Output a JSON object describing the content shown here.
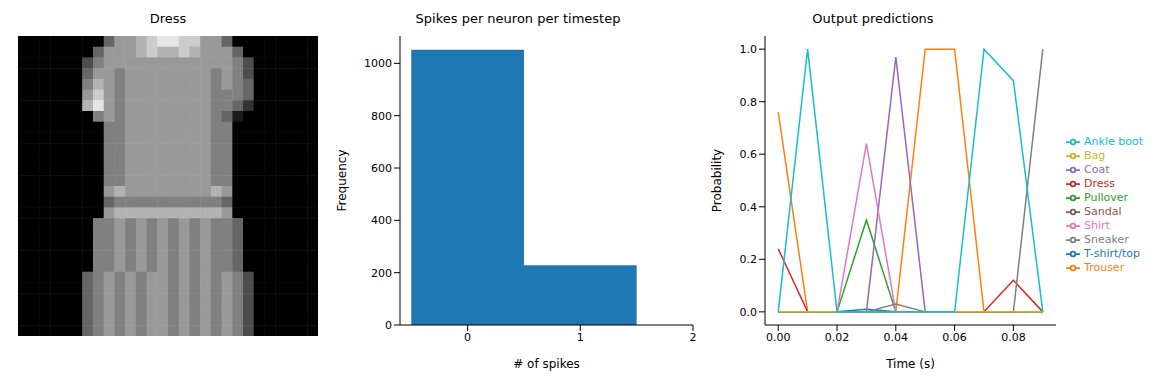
{
  "chart_data": [
    {
      "type": "image",
      "title": "Dress",
      "cells": [
        [
          0,
          0,
          0,
          0,
          0,
          0,
          0,
          0,
          0.4,
          0.6,
          0.6,
          0.7,
          0.8,
          0.9,
          0.9,
          0.8,
          0.8,
          0.6,
          0.6,
          0.4,
          0,
          0,
          0,
          0,
          0,
          0,
          0,
          0
        ],
        [
          0,
          0,
          0,
          0,
          0,
          0,
          0,
          0.4,
          0.6,
          0.6,
          0.6,
          0.7,
          0.8,
          0.7,
          0.7,
          0.8,
          0.7,
          0.6,
          0.6,
          0.6,
          0.4,
          0,
          0,
          0,
          0,
          0,
          0,
          0
        ],
        [
          0,
          0,
          0,
          0,
          0,
          0,
          0.3,
          0.5,
          0.6,
          0.6,
          0.6,
          0.6,
          0.6,
          0.6,
          0.6,
          0.6,
          0.6,
          0.6,
          0.6,
          0.6,
          0.5,
          0.3,
          0,
          0,
          0,
          0,
          0,
          0
        ],
        [
          0,
          0,
          0,
          0,
          0,
          0,
          0.4,
          0.6,
          0.6,
          0.5,
          0.6,
          0.6,
          0.6,
          0.6,
          0.6,
          0.6,
          0.6,
          0.6,
          0.5,
          0.6,
          0.5,
          0.3,
          0,
          0,
          0,
          0,
          0,
          0
        ],
        [
          0,
          0,
          0,
          0,
          0,
          0,
          0.5,
          0.7,
          0.6,
          0.5,
          0.6,
          0.6,
          0.6,
          0.6,
          0.6,
          0.6,
          0.6,
          0.6,
          0.5,
          0.6,
          0.5,
          0.4,
          0,
          0,
          0,
          0,
          0,
          0
        ],
        [
          0,
          0,
          0,
          0,
          0,
          0,
          0.6,
          0.8,
          0.6,
          0.5,
          0.6,
          0.6,
          0.6,
          0.6,
          0.6,
          0.6,
          0.6,
          0.6,
          0.5,
          0.5,
          0.5,
          0.4,
          0,
          0,
          0,
          0,
          0,
          0
        ],
        [
          0,
          0,
          0,
          0,
          0,
          0,
          0.7,
          0.9,
          0.6,
          0.5,
          0.6,
          0.6,
          0.6,
          0.6,
          0.6,
          0.6,
          0.6,
          0.6,
          0.5,
          0.5,
          0.4,
          0.2,
          0,
          0,
          0,
          0,
          0,
          0
        ],
        [
          0,
          0,
          0,
          0,
          0,
          0,
          0,
          0.5,
          0.6,
          0.5,
          0.6,
          0.6,
          0.6,
          0.6,
          0.6,
          0.6,
          0.6,
          0.6,
          0.5,
          0.4,
          0.1,
          0,
          0,
          0,
          0,
          0,
          0,
          0
        ],
        [
          0,
          0,
          0,
          0,
          0,
          0,
          0,
          0,
          0.5,
          0.5,
          0.6,
          0.6,
          0.6,
          0.6,
          0.6,
          0.6,
          0.6,
          0.6,
          0.5,
          0.5,
          0,
          0,
          0,
          0,
          0,
          0,
          0,
          0
        ],
        [
          0,
          0,
          0,
          0,
          0,
          0,
          0,
          0,
          0.5,
          0.5,
          0.6,
          0.6,
          0.6,
          0.6,
          0.6,
          0.6,
          0.6,
          0.6,
          0.5,
          0.5,
          0,
          0,
          0,
          0,
          0,
          0,
          0,
          0
        ],
        [
          0,
          0,
          0,
          0,
          0,
          0,
          0,
          0,
          0.5,
          0.5,
          0.6,
          0.6,
          0.6,
          0.6,
          0.6,
          0.6,
          0.6,
          0.6,
          0.5,
          0.5,
          0,
          0,
          0,
          0,
          0,
          0,
          0,
          0
        ],
        [
          0,
          0,
          0,
          0,
          0,
          0,
          0,
          0,
          0.5,
          0.5,
          0.6,
          0.6,
          0.6,
          0.6,
          0.6,
          0.6,
          0.6,
          0.6,
          0.5,
          0.5,
          0,
          0,
          0,
          0,
          0,
          0,
          0,
          0
        ],
        [
          0,
          0,
          0,
          0,
          0,
          0,
          0,
          0,
          0.5,
          0.5,
          0.6,
          0.6,
          0.6,
          0.6,
          0.6,
          0.6,
          0.6,
          0.6,
          0.5,
          0.5,
          0,
          0,
          0,
          0,
          0,
          0,
          0,
          0
        ],
        [
          0,
          0,
          0,
          0,
          0,
          0,
          0,
          0,
          0.5,
          0.5,
          0.6,
          0.6,
          0.6,
          0.6,
          0.6,
          0.6,
          0.6,
          0.6,
          0.5,
          0.5,
          0,
          0,
          0,
          0,
          0,
          0,
          0,
          0
        ],
        [
          0,
          0,
          0,
          0,
          0,
          0,
          0,
          0,
          0.6,
          0.7,
          0.6,
          0.6,
          0.6,
          0.6,
          0.6,
          0.6,
          0.6,
          0.6,
          0.7,
          0.6,
          0,
          0,
          0,
          0,
          0,
          0,
          0,
          0
        ],
        [
          0,
          0,
          0,
          0,
          0,
          0,
          0,
          0,
          0.4,
          0.5,
          0.5,
          0.5,
          0.5,
          0.5,
          0.5,
          0.5,
          0.5,
          0.5,
          0.5,
          0.4,
          0,
          0,
          0,
          0,
          0,
          0,
          0,
          0
        ],
        [
          0,
          0,
          0,
          0,
          0,
          0,
          0,
          0,
          0.6,
          0.7,
          0.7,
          0.7,
          0.7,
          0.7,
          0.7,
          0.7,
          0.7,
          0.7,
          0.7,
          0.6,
          0,
          0,
          0,
          0,
          0,
          0,
          0,
          0
        ],
        [
          0,
          0,
          0,
          0,
          0,
          0,
          0,
          0.5,
          0.5,
          0.6,
          0.5,
          0.6,
          0.5,
          0.6,
          0.5,
          0.6,
          0.5,
          0.6,
          0.5,
          0.5,
          0.4,
          0,
          0,
          0,
          0,
          0,
          0,
          0
        ],
        [
          0,
          0,
          0,
          0,
          0,
          0,
          0,
          0.5,
          0.5,
          0.6,
          0.5,
          0.6,
          0.5,
          0.6,
          0.5,
          0.6,
          0.5,
          0.6,
          0.5,
          0.5,
          0.4,
          0,
          0,
          0,
          0,
          0,
          0,
          0
        ],
        [
          0,
          0,
          0,
          0,
          0,
          0,
          0,
          0.5,
          0.5,
          0.6,
          0.5,
          0.6,
          0.5,
          0.6,
          0.5,
          0.6,
          0.5,
          0.6,
          0.5,
          0.5,
          0.4,
          0,
          0,
          0,
          0,
          0,
          0,
          0
        ],
        [
          0,
          0,
          0,
          0,
          0,
          0,
          0,
          0.5,
          0.5,
          0.6,
          0.5,
          0.6,
          0.5,
          0.6,
          0.5,
          0.6,
          0.5,
          0.6,
          0.5,
          0.5,
          0.4,
          0,
          0,
          0,
          0,
          0,
          0,
          0
        ],
        [
          0,
          0,
          0,
          0,
          0,
          0,
          0,
          0.5,
          0.5,
          0.6,
          0.5,
          0.6,
          0.5,
          0.6,
          0.5,
          0.6,
          0.5,
          0.6,
          0.5,
          0.5,
          0.4,
          0,
          0,
          0,
          0,
          0,
          0,
          0
        ],
        [
          0,
          0,
          0,
          0,
          0,
          0,
          0.4,
          0.5,
          0.6,
          0.5,
          0.6,
          0.5,
          0.6,
          0.6,
          0.5,
          0.6,
          0.5,
          0.6,
          0.5,
          0.6,
          0.5,
          0.3,
          0,
          0,
          0,
          0,
          0,
          0
        ],
        [
          0,
          0,
          0,
          0,
          0,
          0,
          0.4,
          0.5,
          0.6,
          0.5,
          0.6,
          0.5,
          0.6,
          0.6,
          0.5,
          0.6,
          0.5,
          0.6,
          0.5,
          0.6,
          0.5,
          0.3,
          0,
          0,
          0,
          0,
          0,
          0
        ],
        [
          0,
          0,
          0,
          0,
          0,
          0,
          0.4,
          0.5,
          0.6,
          0.5,
          0.6,
          0.5,
          0.6,
          0.6,
          0.5,
          0.6,
          0.5,
          0.6,
          0.5,
          0.6,
          0.5,
          0.3,
          0,
          0,
          0,
          0,
          0,
          0
        ],
        [
          0,
          0,
          0,
          0,
          0,
          0,
          0.4,
          0.5,
          0.6,
          0.5,
          0.6,
          0.5,
          0.6,
          0.6,
          0.5,
          0.6,
          0.5,
          0.6,
          0.5,
          0.6,
          0.5,
          0.3,
          0,
          0,
          0,
          0,
          0,
          0
        ],
        [
          0,
          0,
          0,
          0,
          0,
          0,
          0.4,
          0.5,
          0.6,
          0.5,
          0.6,
          0.5,
          0.6,
          0.6,
          0.5,
          0.6,
          0.5,
          0.6,
          0.5,
          0.6,
          0.5,
          0.3,
          0,
          0,
          0,
          0,
          0,
          0
        ],
        [
          0,
          0,
          0,
          0,
          0,
          0,
          0.4,
          0.5,
          0.6,
          0.5,
          0.6,
          0.5,
          0.6,
          0.6,
          0.5,
          0.6,
          0.5,
          0.6,
          0.5,
          0.6,
          0.5,
          0.3,
          0,
          0,
          0,
          0,
          0,
          0
        ]
      ]
    },
    {
      "type": "histogram",
      "title": "Spikes per neuron per timestep",
      "xlabel": "# of spikes",
      "ylabel": "Frequency",
      "bins": [
        -0.5,
        0.5,
        1.5
      ],
      "values": [
        1052,
        228
      ],
      "color": "#1f77b4",
      "xlim": [
        -0.6,
        2
      ],
      "xticks": [
        0,
        1,
        2
      ],
      "ylim": [
        0,
        1104.6
      ],
      "yticks": [
        0,
        200,
        400,
        600,
        800,
        1000
      ]
    },
    {
      "type": "line",
      "title": "Output predictions",
      "xlabel": "Time (s)",
      "ylabel": "Probability",
      "x": [
        0,
        0.01,
        0.02,
        0.03,
        0.04,
        0.05,
        0.06,
        0.07,
        0.08,
        0.09
      ],
      "series": [
        {
          "name": "T-shirt/top",
          "color": "#1f77b4",
          "values": [
            0,
            0,
            0,
            0.01,
            0,
            0,
            0,
            0,
            0,
            0
          ]
        },
        {
          "name": "Trouser",
          "color": "#ff7f0e",
          "values": [
            0.76,
            0,
            0,
            0,
            0,
            1,
            1,
            0,
            0,
            0
          ]
        },
        {
          "name": "Pullover",
          "color": "#2ca02c",
          "values": [
            0,
            0,
            0,
            0.35,
            0,
            0,
            0,
            0,
            0,
            0
          ]
        },
        {
          "name": "Dress",
          "color": "#d62728",
          "values": [
            0.24,
            0,
            0,
            0,
            0,
            0,
            0,
            0,
            0.12,
            0
          ]
        },
        {
          "name": "Coat",
          "color": "#9467bd",
          "values": [
            0,
            0,
            0,
            0,
            0.97,
            0,
            0,
            0,
            0,
            0
          ]
        },
        {
          "name": "Sandal",
          "color": "#8c564b",
          "values": [
            0,
            0,
            0,
            0,
            0,
            0,
            0,
            0,
            0,
            0
          ]
        },
        {
          "name": "Shirt",
          "color": "#e377c2",
          "values": [
            0,
            0,
            0,
            0.64,
            0,
            0,
            0,
            0,
            0,
            0
          ]
        },
        {
          "name": "Sneaker",
          "color": "#7f7f7f",
          "values": [
            0,
            0,
            0,
            0,
            0.03,
            0,
            0,
            0,
            0,
            1
          ]
        },
        {
          "name": "Bag",
          "color": "#bcbd22",
          "values": [
            0,
            0,
            0,
            0,
            0,
            0,
            0,
            0,
            0,
            0
          ]
        },
        {
          "name": "Ankle boot",
          "color": "#17becf",
          "values": [
            0,
            1,
            0,
            0,
            0,
            0,
            0,
            1,
            0.88,
            0
          ]
        }
      ],
      "xlim": [
        -0.0045,
        0.0945
      ],
      "xticks": [
        {
          "value": 0,
          "label": "0.00"
        },
        {
          "value": 0.02,
          "label": "0.02"
        },
        {
          "value": 0.04,
          "label": "0.04"
        },
        {
          "value": 0.06,
          "label": "0.06"
        },
        {
          "value": 0.08,
          "label": "0.08"
        }
      ],
      "ylim": [
        -0.05,
        1.05
      ],
      "yticks": [
        {
          "value": 0,
          "label": "0.0"
        },
        {
          "value": 0.2,
          "label": "0.2"
        },
        {
          "value": 0.4,
          "label": "0.4"
        },
        {
          "value": 0.6,
          "label": "0.6"
        },
        {
          "value": 0.8,
          "label": "0.8"
        },
        {
          "value": 1,
          "label": "1.0"
        }
      ],
      "legend": "right"
    }
  ]
}
